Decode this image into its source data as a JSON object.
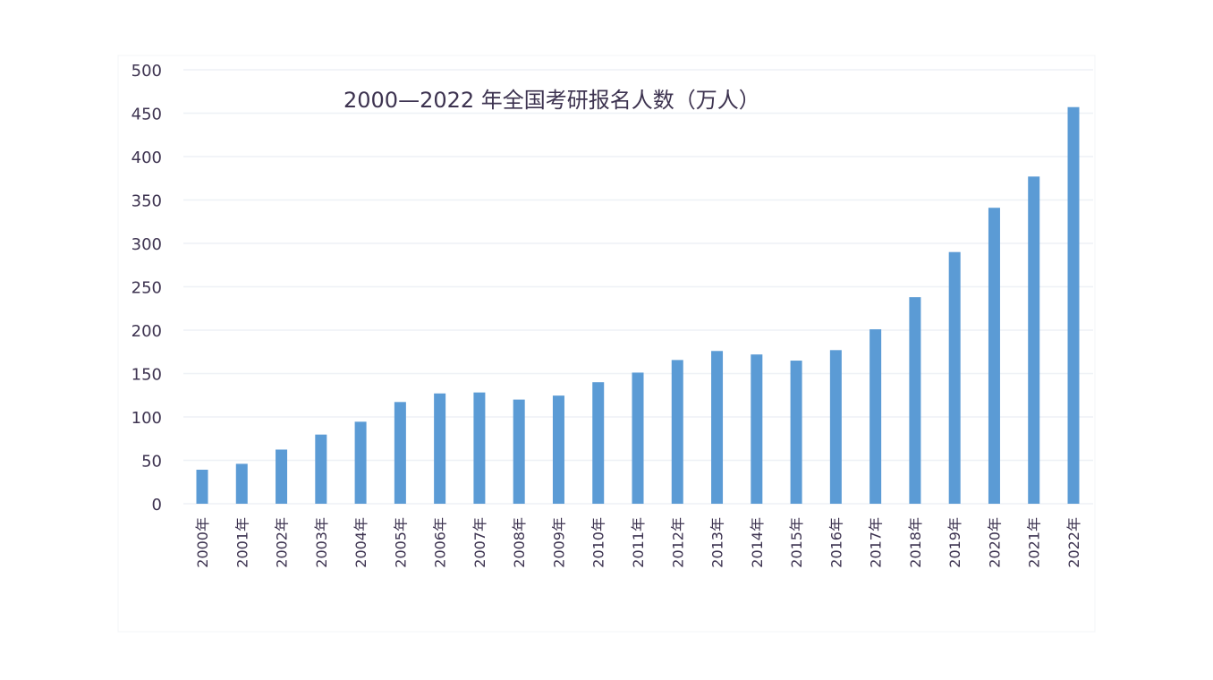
{
  "chart_data": {
    "type": "bar",
    "title": "2000—2022 年全国考研报名人数（万人）",
    "xlabel": "",
    "ylabel": "",
    "categories": [
      "2000年",
      "2001年",
      "2002年",
      "2003年",
      "2004年",
      "2005年",
      "2006年",
      "2007年",
      "2008年",
      "2009年",
      "2010年",
      "2011年",
      "2012年",
      "2013年",
      "2014年",
      "2015年",
      "2016年",
      "2017年",
      "2018年",
      "2019年",
      "2020年",
      "2021年",
      "2022年"
    ],
    "values": [
      39.2,
      46,
      62.4,
      79.7,
      94.5,
      117.2,
      127.1,
      128.2,
      120,
      124.6,
      140,
      151.1,
      165.6,
      176,
      172,
      164.9,
      177,
      201,
      238,
      290,
      341,
      377,
      457
    ],
    "ylim": [
      0,
      500
    ],
    "yticks": [
      0,
      50,
      100,
      150,
      200,
      250,
      300,
      350,
      400,
      450,
      500
    ],
    "grid": true,
    "legend": "none",
    "colors": {
      "bar": "#5b9bd5",
      "text": "#3d3350",
      "grid": "#eef1f6"
    }
  }
}
